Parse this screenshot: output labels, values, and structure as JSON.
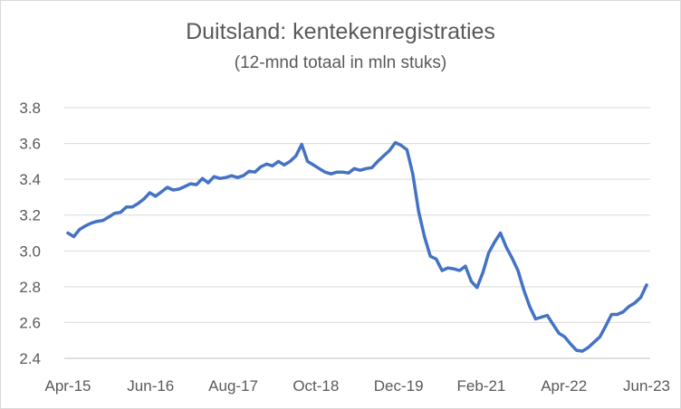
{
  "chart_data": {
    "type": "line",
    "title": "Duitsland: kentekenregistraties",
    "subtitle": "(12-mnd totaal in mln stuks)",
    "xlabel": "",
    "ylabel": "",
    "ylim": [
      2.4,
      3.8
    ],
    "yticks": [
      "2.4",
      "2.6",
      "2.8",
      "3.0",
      "3.2",
      "3.4",
      "3.6",
      "3.8"
    ],
    "xticks": [
      "Apr-15",
      "Jun-16",
      "Aug-17",
      "Oct-18",
      "Dec-19",
      "Feb-21",
      "Apr-22",
      "Jun-23"
    ],
    "grid": true,
    "legend": "none",
    "line_color": "#4472C4",
    "series": [
      {
        "values": [
          3.1,
          3.08,
          3.12,
          3.14,
          3.155,
          3.165,
          3.17,
          3.19,
          3.21,
          3.215,
          3.245,
          3.245,
          3.265,
          3.29,
          3.325,
          3.305,
          3.33,
          3.355,
          3.34,
          3.345,
          3.36,
          3.375,
          3.37,
          3.405,
          3.38,
          3.415,
          3.405,
          3.41,
          3.42,
          3.41,
          3.42,
          3.445,
          3.44,
          3.47,
          3.485,
          3.475,
          3.5,
          3.48,
          3.5,
          3.53,
          3.595,
          3.5,
          3.48,
          3.46,
          3.44,
          3.43,
          3.44,
          3.44,
          3.435,
          3.46,
          3.45,
          3.46,
          3.465,
          3.5,
          3.53,
          3.56,
          3.605,
          3.59,
          3.565,
          3.43,
          3.22,
          3.08,
          2.97,
          2.955,
          2.89,
          2.905,
          2.9,
          2.89,
          2.915,
          2.83,
          2.795,
          2.88,
          2.99,
          3.05,
          3.1,
          3.02,
          2.96,
          2.89,
          2.78,
          2.69,
          2.62,
          2.63,
          2.64,
          2.59,
          2.54,
          2.52,
          2.48,
          2.445,
          2.44,
          2.46,
          2.49,
          2.52,
          2.58,
          2.645,
          2.645,
          2.66,
          2.69,
          2.71,
          2.74,
          2.81
        ]
      }
    ]
  }
}
